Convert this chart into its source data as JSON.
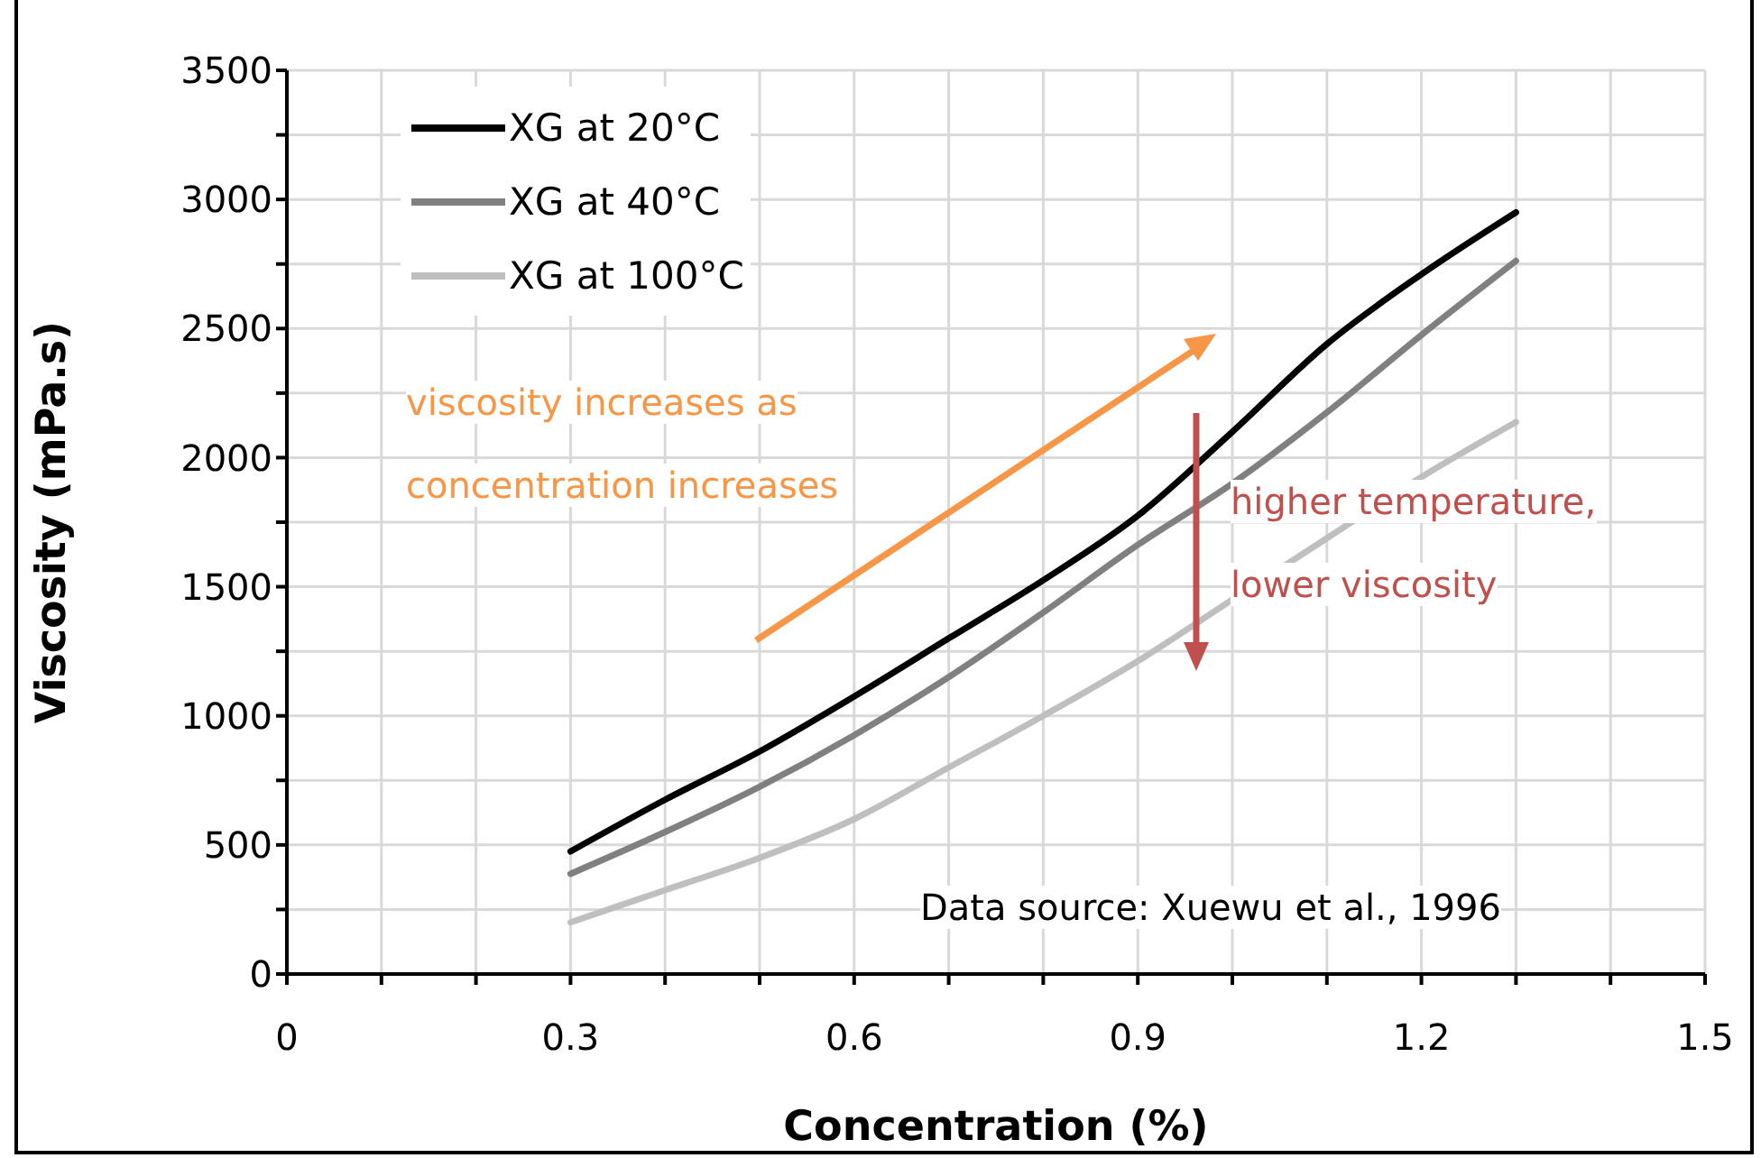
{
  "chart_data": {
    "type": "line",
    "xlabel": "Concentration (%)",
    "ylabel": "Viscosity (mPa.s)",
    "x": [
      0.3,
      0.4,
      0.5,
      0.6,
      0.7,
      0.8,
      0.9,
      1.0,
      1.1,
      1.2,
      1.3
    ],
    "series": [
      {
        "name": "XG at 20°C",
        "color": "#000000",
        "values": [
          475,
          675,
          862,
          1075,
          1300,
          1525,
          1775,
          2100,
          2440,
          2710,
          2950
        ]
      },
      {
        "name": "XG at 40°C",
        "color": "#808080",
        "values": [
          388,
          550,
          725,
          925,
          1150,
          1400,
          1662,
          1900,
          2175,
          2475,
          2762
        ]
      },
      {
        "name": "XG at 100°C",
        "color": "#bfbfbf",
        "values": [
          200,
          325,
          450,
          600,
          800,
          1000,
          1212,
          1450,
          1688,
          1925,
          2138
        ]
      }
    ],
    "xlim": [
      0,
      1.5
    ],
    "xticks": [
      0,
      {
        "value": 0.1,
        "label": null
      },
      {
        "value": 0.2,
        "label": null
      },
      0.3,
      {
        "value": 0.4,
        "label": null
      },
      {
        "value": 0.5,
        "label": null
      },
      0.6,
      {
        "value": 0.7,
        "label": null
      },
      {
        "value": 0.8,
        "label": null
      },
      0.9,
      {
        "value": 1.0,
        "label": null
      },
      {
        "value": 1.1,
        "label": null
      },
      1.2,
      {
        "value": 1.3,
        "label": null
      },
      {
        "value": 1.4,
        "label": null
      },
      1.5
    ],
    "ylim": [
      0,
      3500
    ],
    "yticks": [
      0,
      {
        "value": 250,
        "label": null
      },
      500,
      {
        "value": 750,
        "label": null
      },
      1000,
      {
        "value": 1250,
        "label": null
      },
      1500,
      {
        "value": 1750,
        "label": null
      },
      2000,
      {
        "value": 2250,
        "label": null
      },
      2500,
      {
        "value": 2750,
        "label": null
      },
      3000,
      {
        "value": 3250,
        "label": null
      },
      3500
    ],
    "grid": true,
    "legend": "top left",
    "marker": "none",
    "line_style": "solid",
    "annotations": [
      "viscosity increases as\nconcentration increases",
      "higher temperature,\nlower viscosity",
      "Data source: Xuewu et al., 1996"
    ]
  }
}
